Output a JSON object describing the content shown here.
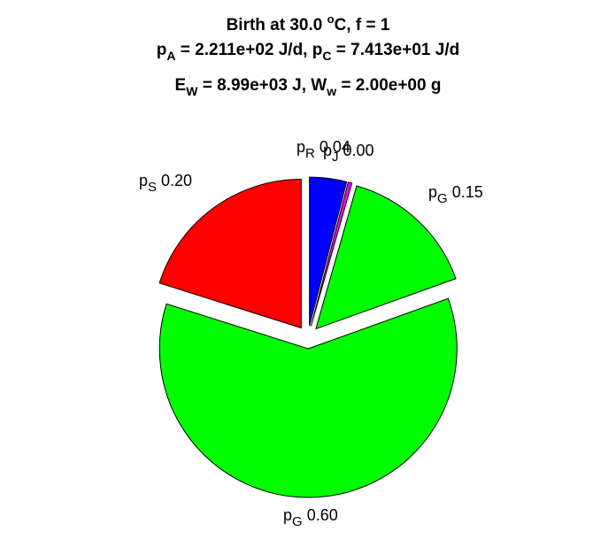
{
  "title": {
    "line1_prefix": "Birth at 30.0 ",
    "line1_deg": "o",
    "line1_suffix": "C, f = 1",
    "pA_sym": "p",
    "pA_sub": "A",
    "pA_val": " = 2.211e+02 J/d, ",
    "pC_sym": "p",
    "pC_sub": "C",
    "pC_val": " = 7.413e+01 J/d",
    "EW_sym": "E",
    "EW_sub": "W",
    "EW_val": " = 8.99e+03 J, ",
    "Ww_sym": "W",
    "Ww_sub": "w",
    "Ww_val": " = 2.00e+00 g"
  },
  "chart_data": {
    "type": "pie",
    "slices": [
      {
        "sym": "p",
        "sub": "R",
        "value": 0.04,
        "label": "0.04",
        "color": "#0000ff"
      },
      {
        "sym": "p",
        "sub": "J",
        "value": 0.004,
        "label": "0.00",
        "color": "#ff00ff"
      },
      {
        "sym": "p",
        "sub": "G",
        "value": 0.15,
        "label": "0.15",
        "color": "#00ff00"
      },
      {
        "sym": "p",
        "sub": "G",
        "value": 0.6,
        "label": "0.60",
        "color": "#00ff00"
      },
      {
        "sym": "p",
        "sub": "S",
        "value": 0.2,
        "label": "0.20",
        "color": "#ff0000"
      }
    ]
  }
}
